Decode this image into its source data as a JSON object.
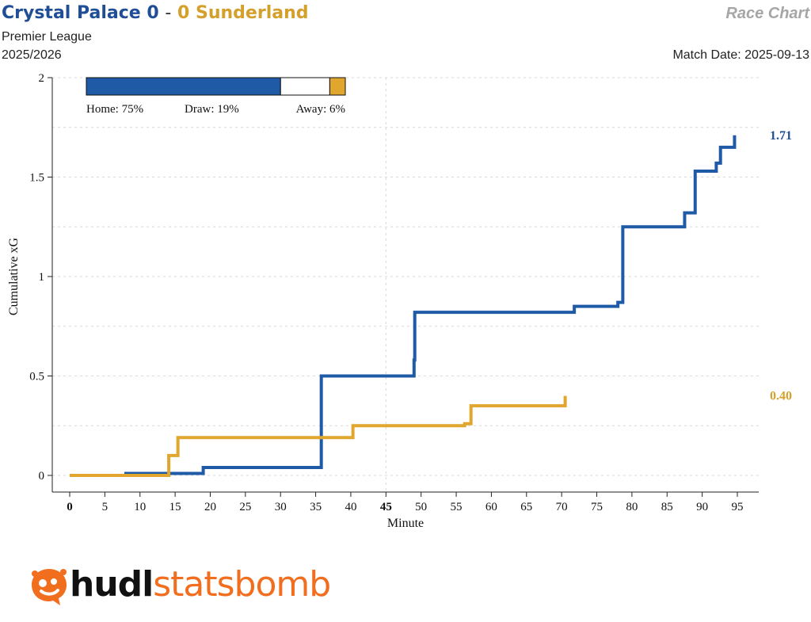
{
  "header": {
    "home_team": "Crystal Palace",
    "home_score": "0",
    "separator": "-",
    "away_score": "0",
    "away_team": "Sunderland",
    "competition": "Premier League",
    "season": "2025/2026",
    "chart_type_label": "Race Chart",
    "match_date": "Match Date: 2025-09-13"
  },
  "colors": {
    "home": "#1f5aa6",
    "away": "#e0a62e",
    "home_text": "#1f4e96",
    "away_text": "#d4a02b"
  },
  "logo": {
    "icon": "statsbomb-logo-icon",
    "word1": "hudl",
    "word2": "statsbomb"
  },
  "chart_data": {
    "type": "line",
    "step": true,
    "xlabel": "Minute",
    "ylabel": "Cumulative xG",
    "xlim": [
      0,
      95
    ],
    "ylim": [
      0,
      2
    ],
    "x_ticks": [
      0,
      5,
      10,
      15,
      20,
      25,
      30,
      35,
      40,
      45,
      50,
      55,
      60,
      65,
      70,
      75,
      80,
      85,
      90,
      95
    ],
    "x_ticks_bold": [
      0,
      45
    ],
    "y_ticks": [
      0,
      0.5,
      1,
      1.5,
      2
    ],
    "y_tick_labels": [
      "0",
      "0.5",
      "1",
      "1.5",
      "2"
    ],
    "grid": "dotted",
    "series": [
      {
        "name": "Crystal Palace",
        "side": "home",
        "final_label": "1.71",
        "points": [
          [
            0,
            0
          ],
          [
            8,
            0.01
          ],
          [
            19,
            0.04
          ],
          [
            35.8,
            0.5
          ],
          [
            49,
            0.58
          ],
          [
            49.1,
            0.82
          ],
          [
            71.8,
            0.85
          ],
          [
            78,
            0.87
          ],
          [
            78.7,
            1.25
          ],
          [
            87.5,
            1.32
          ],
          [
            89,
            1.53
          ],
          [
            92,
            1.57
          ],
          [
            92.6,
            1.65
          ],
          [
            94.6,
            1.71
          ]
        ]
      },
      {
        "name": "Sunderland",
        "side": "away",
        "final_label": "0.40",
        "points": [
          [
            0,
            0
          ],
          [
            14.1,
            0.1
          ],
          [
            15.4,
            0.19
          ],
          [
            40.3,
            0.25
          ],
          [
            56.2,
            0.26
          ],
          [
            57.1,
            0.35
          ],
          [
            70.5,
            0.4
          ]
        ]
      }
    ],
    "win_probability": {
      "home": 0.75,
      "draw": 0.19,
      "away": 0.06,
      "home_label": "Home: 75%",
      "draw_label": "Draw: 19%",
      "away_label": "Away: 6%"
    }
  }
}
